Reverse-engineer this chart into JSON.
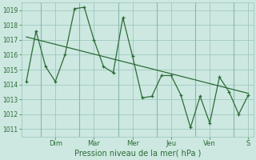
{
  "xlabel": "Pression niveau de la mer( hPa )",
  "bg_color": "#cce8e0",
  "grid_color": "#a0c8c0",
  "line_color": "#2d6b38",
  "sep_color": "#88b8b0",
  "ylim": [
    1010.5,
    1019.5
  ],
  "yticks": [
    1011,
    1012,
    1013,
    1014,
    1015,
    1016,
    1017,
    1018,
    1019
  ],
  "day_labels": [
    "Dim",
    "Mar",
    "Mer",
    "Jeu",
    "Ven",
    "S"
  ],
  "day_tick_pos": [
    3,
    7,
    11,
    15,
    19,
    23
  ],
  "day_sep_pos": [
    1.5,
    5.5,
    9.5,
    13.5,
    17.5,
    21.5
  ],
  "xlim": [
    -0.5,
    23.5
  ],
  "x_data": [
    0,
    1,
    2,
    3,
    4,
    5,
    6,
    7,
    8,
    9,
    10,
    11,
    12,
    13,
    14,
    15,
    16,
    17,
    18,
    19,
    20,
    21,
    22,
    23
  ],
  "y_main": [
    1014.2,
    1017.6,
    1015.2,
    1014.2,
    1016.0,
    1019.1,
    1019.2,
    1017.0,
    1015.2,
    1014.8,
    1018.5,
    1015.9,
    1013.1,
    1013.2,
    1014.6,
    1014.6,
    1013.3,
    1011.1,
    1013.2,
    1011.4,
    1014.5,
    1013.5,
    1012.0,
    1013.3
  ],
  "trend_x": [
    0,
    23
  ],
  "trend_y": [
    1017.2,
    1013.4
  ],
  "ylabel_fontsize": 5.5,
  "xlabel_fontsize": 7,
  "xtick_fontsize": 6,
  "marker_size": 3.5,
  "linewidth": 0.9
}
